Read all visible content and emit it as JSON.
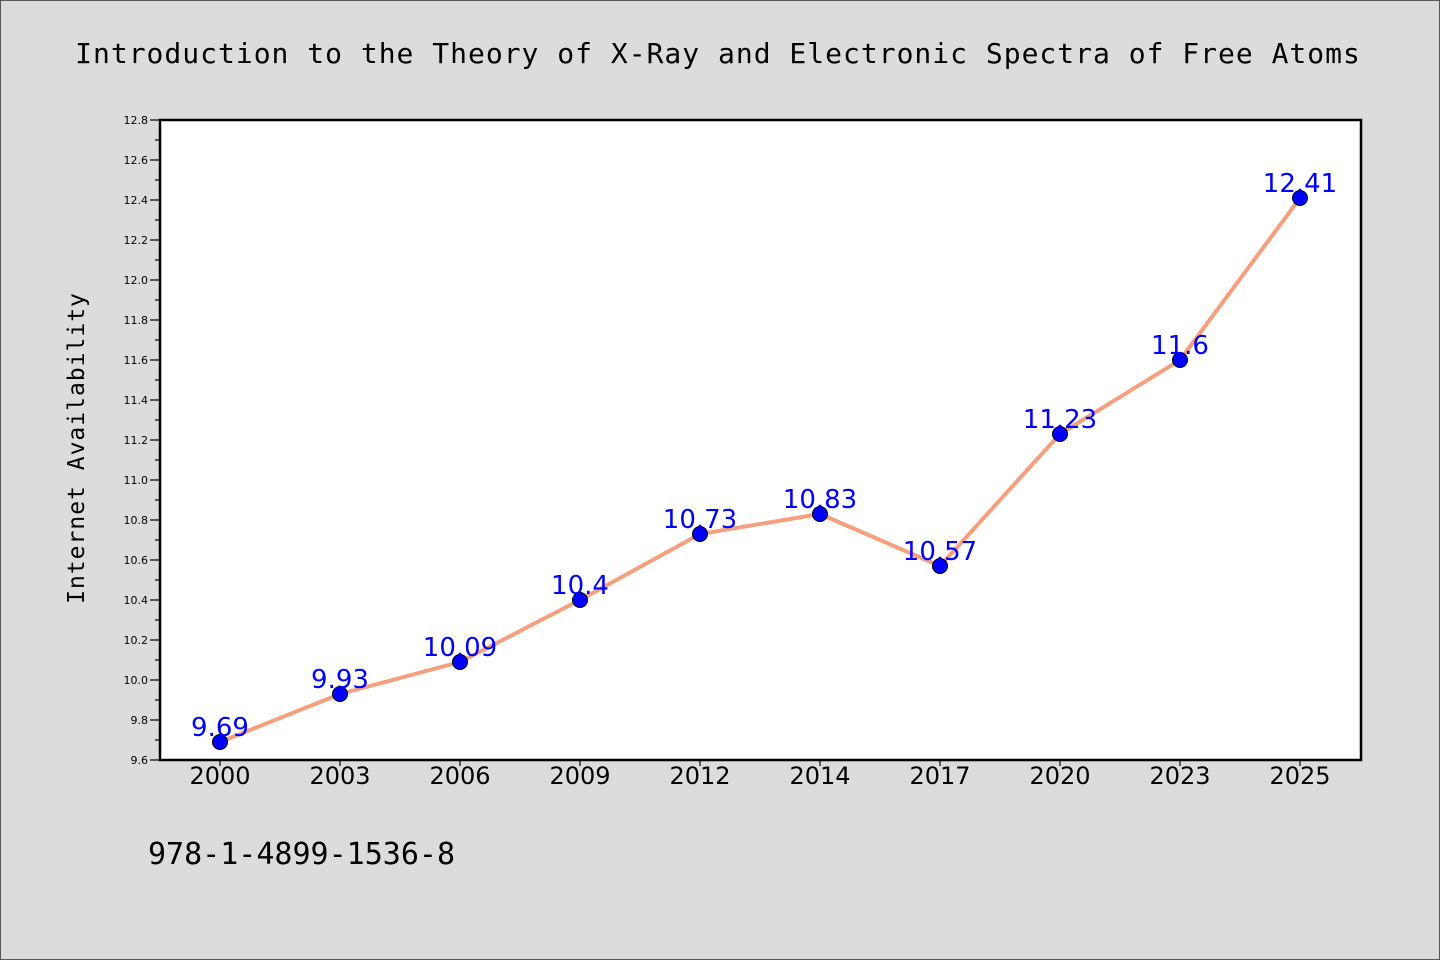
{
  "chart_data": {
    "type": "line",
    "title": "Introduction to the Theory of X-Ray and Electronic Spectra of Free Atoms",
    "ylabel": "Internet Availability",
    "xlabel": "",
    "categories": [
      "2000",
      "2003",
      "2006",
      "2009",
      "2012",
      "2014",
      "2017",
      "2020",
      "2023",
      "2025"
    ],
    "values": [
      9.69,
      9.93,
      10.09,
      10.4,
      10.73,
      10.83,
      10.57,
      11.23,
      11.6,
      12.41
    ],
    "data_labels": [
      "9.69",
      "9.93",
      "10.09",
      "10.4",
      "10.73",
      "10.83",
      "10.57",
      "11.23",
      "11.6",
      "12.41"
    ],
    "ylim": [
      9.6,
      12.8
    ],
    "yticks": [
      "9.6",
      "9.8",
      "10.0",
      "10.2",
      "10.4",
      "10.6",
      "10.8",
      "11.0",
      "11.2",
      "11.4",
      "11.6",
      "11.8",
      "12.0",
      "12.2",
      "12.4",
      "12.6",
      "12.8"
    ],
    "grid": false,
    "line_color": "#f4a07e",
    "marker_color": "#0000ff",
    "label_color": "#0000ff",
    "background_color": "#dcdcdc",
    "plot_background_color": "#ffffff"
  },
  "footer": {
    "isbn": "978-1-4899-1536-8"
  }
}
